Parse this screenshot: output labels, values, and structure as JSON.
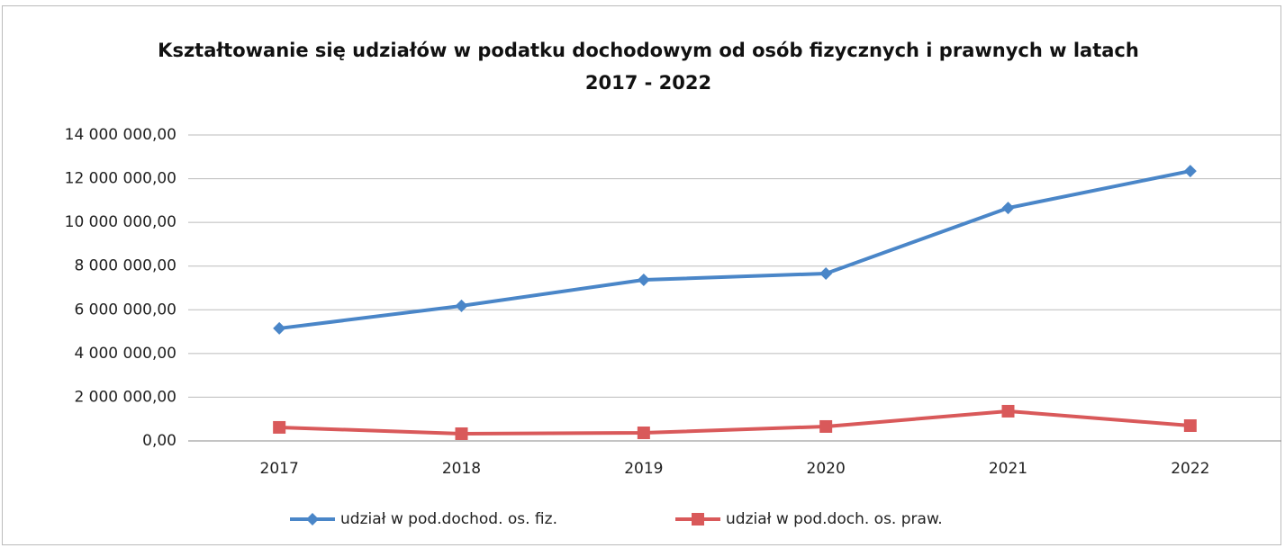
{
  "chart_data": {
    "type": "line",
    "title": "Kształtowanie się udziałów w podatku dochodowym od osób fizycznych i prawnych w latach 2017 - 2022",
    "categories": [
      "2017",
      "2018",
      "2019",
      "2020",
      "2021",
      "2022"
    ],
    "series": [
      {
        "name": "udział w pod.dochod. os. fiz.",
        "color": "#4a86c8",
        "marker": "diamond",
        "values": [
          5150000,
          6180000,
          7370000,
          7660000,
          10660000,
          12350000
        ]
      },
      {
        "name": "udział w pod.doch. os. praw.",
        "color": "#d9595a",
        "marker": "square",
        "values": [
          620000,
          330000,
          370000,
          660000,
          1360000,
          700000
        ]
      }
    ],
    "ylim": [
      0,
      14000000
    ],
    "yticks": [
      {
        "value": 0,
        "label": "0,00"
      },
      {
        "value": 2000000,
        "label": "2 000 000,00"
      },
      {
        "value": 4000000,
        "label": "4 000 000,00"
      },
      {
        "value": 6000000,
        "label": "6 000 000,00"
      },
      {
        "value": 8000000,
        "label": "8 000 000,00"
      },
      {
        "value": 10000000,
        "label": "10 000 000,00"
      },
      {
        "value": 12000000,
        "label": "12 000 000,00"
      },
      {
        "value": 14000000,
        "label": "14 000 000,00"
      }
    ],
    "grid": true,
    "legend": "bottom"
  }
}
